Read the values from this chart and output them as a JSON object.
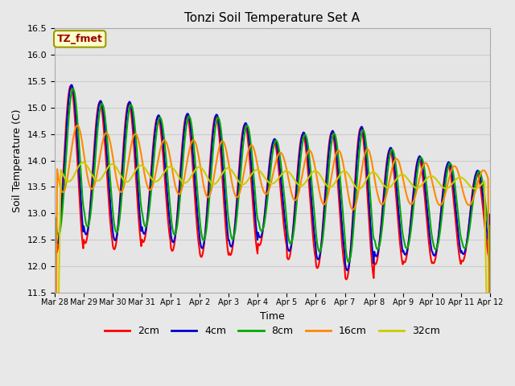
{
  "title": "Tonzi Soil Temperature Set A",
  "xlabel": "Time",
  "ylabel": "Soil Temperature (C)",
  "ylim": [
    11.5,
    16.5
  ],
  "series_labels": [
    "2cm",
    "4cm",
    "8cm",
    "16cm",
    "32cm"
  ],
  "series_colors": [
    "#ff0000",
    "#0000cc",
    "#00aa00",
    "#ff8800",
    "#cccc00"
  ],
  "series_linewidths": [
    1.5,
    1.5,
    1.5,
    1.5,
    1.5
  ],
  "xtick_labels": [
    "Mar 28",
    "Mar 29",
    "Mar 30",
    "Mar 31",
    "Apr 1",
    "Apr 2",
    "Apr 3",
    "Apr 4",
    "Apr 5",
    "Apr 6",
    "Apr 7",
    "Apr 8",
    "Apr 9",
    "Apr 10",
    "Apr 11",
    "Apr 12"
  ],
  "grid_color": "#cccccc",
  "bg_color": "#e8e8e8",
  "plot_bg_color": "#e5e5e5",
  "annotation_text": "TZ_fmet",
  "annotation_color": "#990000",
  "annotation_bg": "#ffffcc",
  "annotation_border": "#999900",
  "fig_bg": "#e8e8e8"
}
